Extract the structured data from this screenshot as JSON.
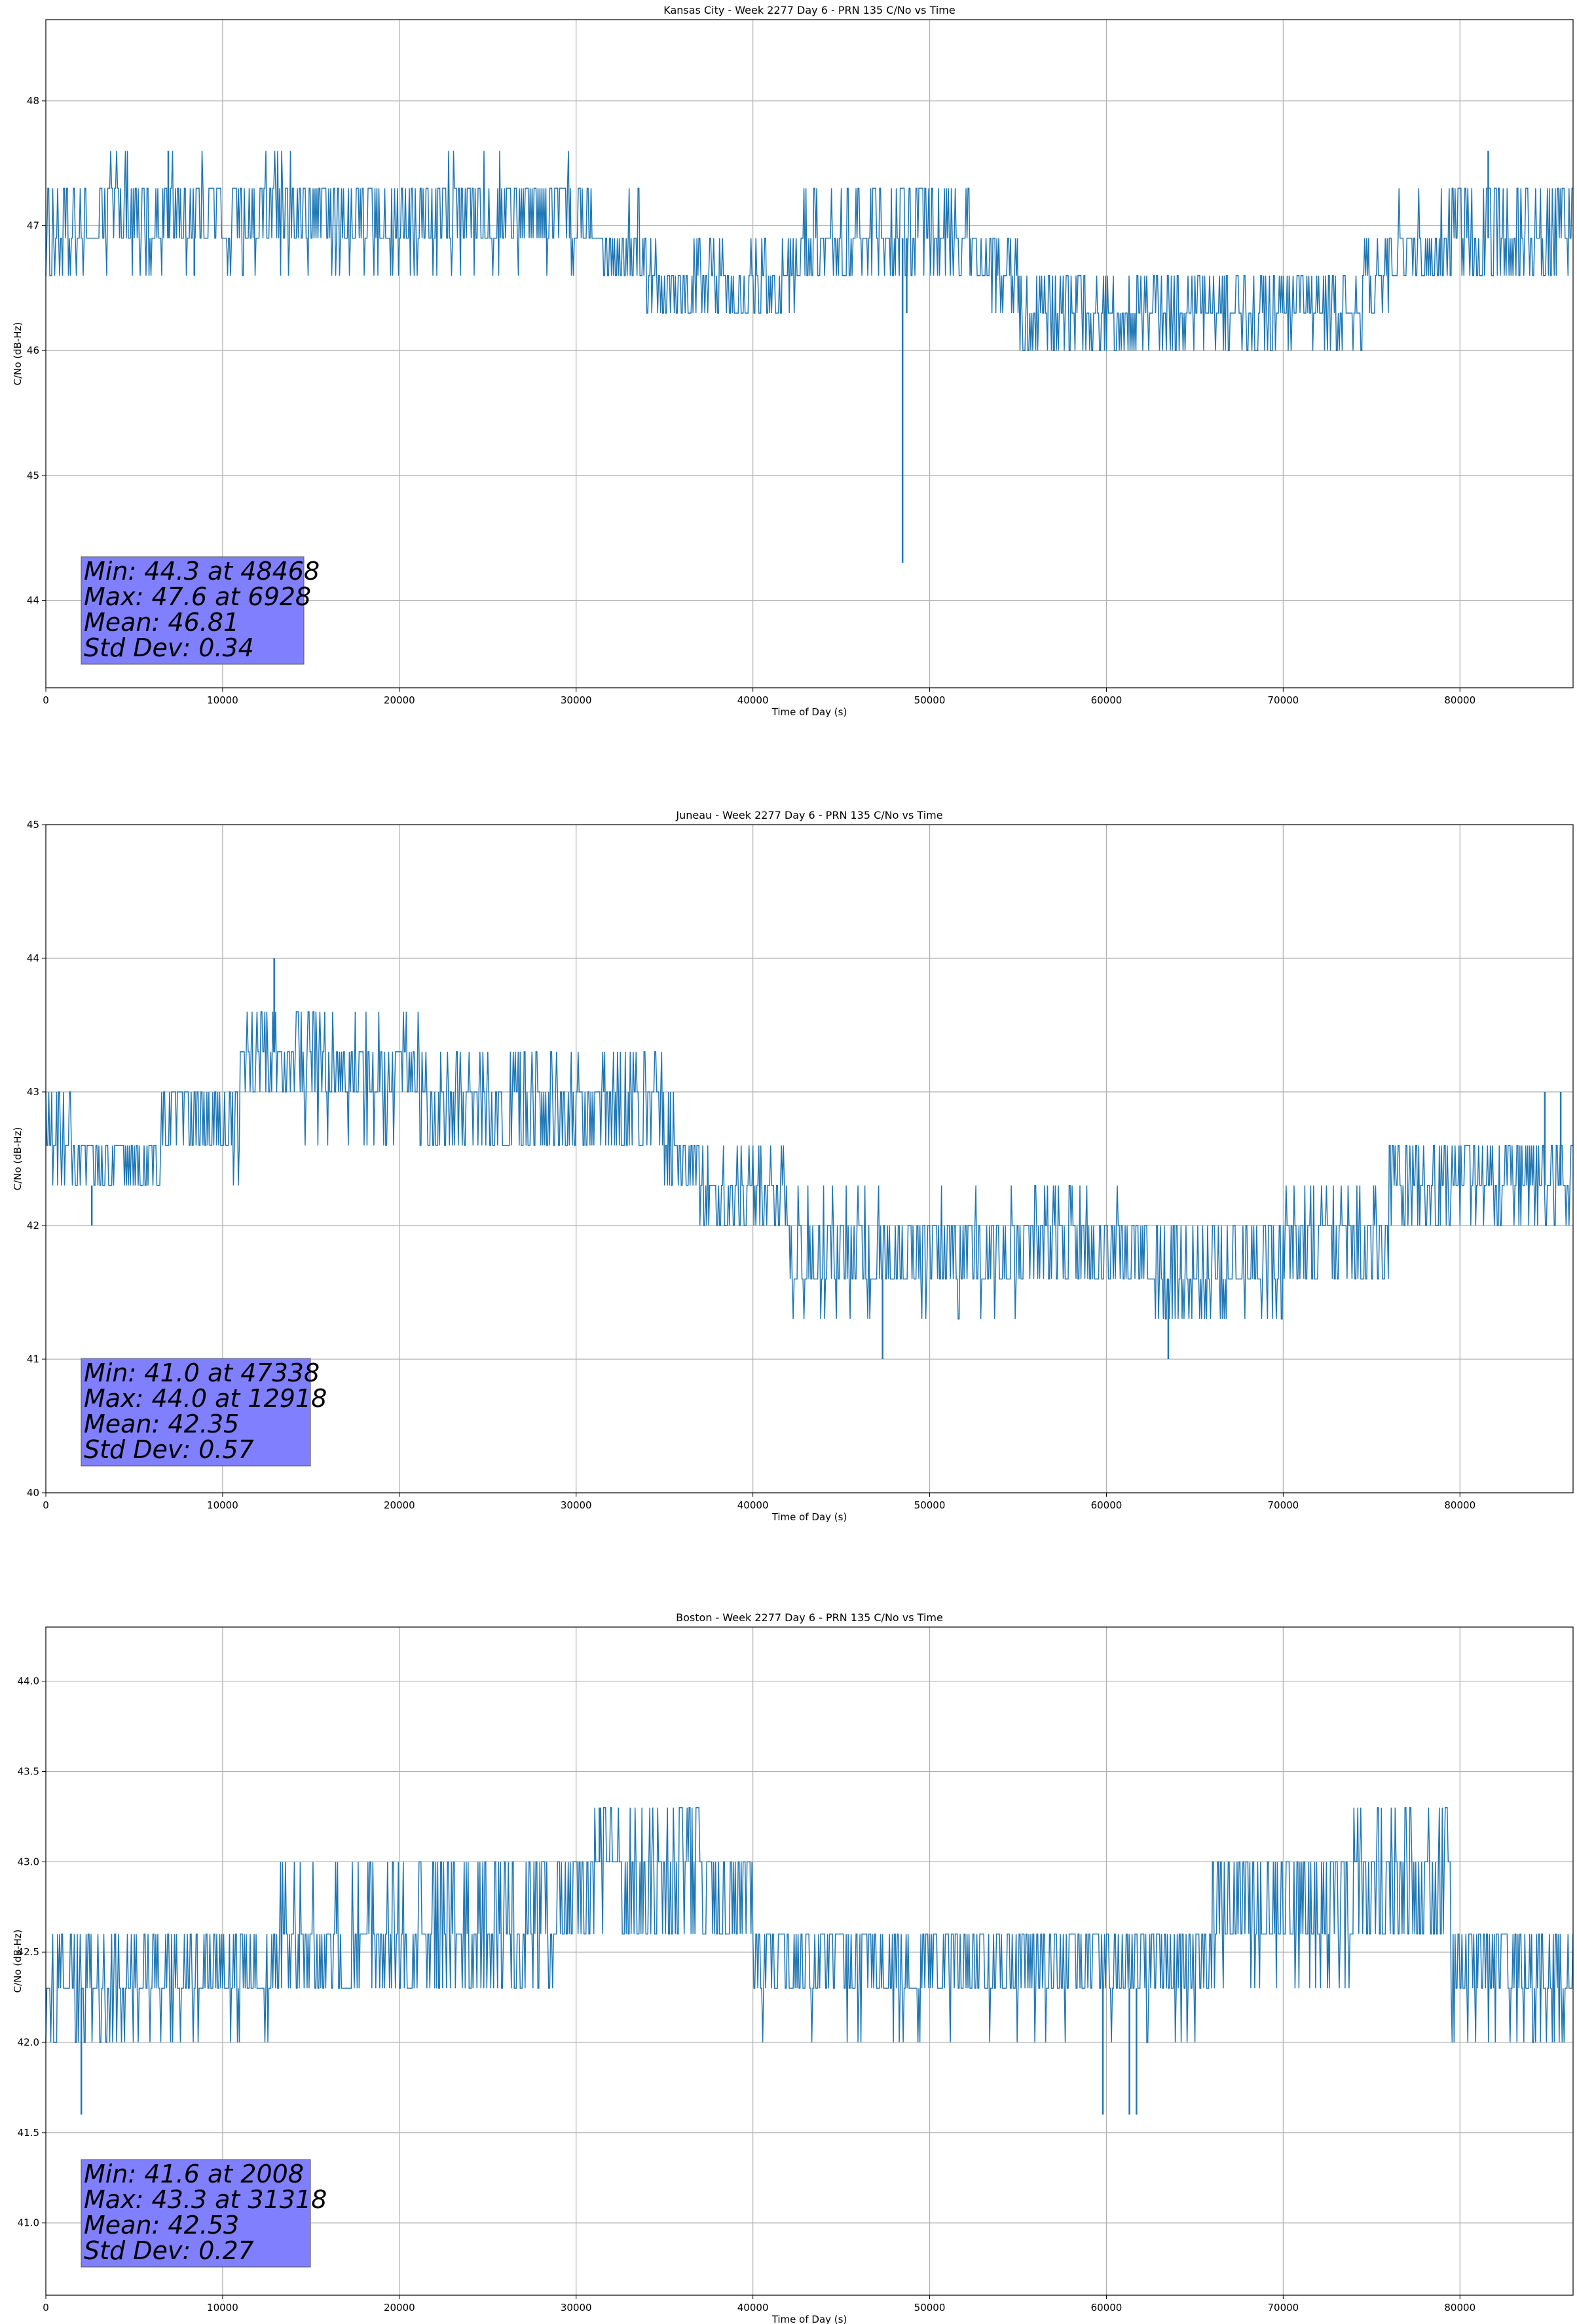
{
  "page": {
    "background": "#ffffff"
  },
  "style": {
    "line_color": "#1f77b4",
    "grid_color": "#b0b0b0",
    "stats_box_color": "#8080ff"
  },
  "chart_data": [
    {
      "type": "line",
      "title": "Kansas City - Week 2277 Day 6 - PRN 135 C/No vs Time",
      "xlabel": "Time of Day (s)",
      "ylabel": "C/No (dB-Hz)",
      "xlim": [
        0,
        86400
      ],
      "ylim": [
        43.3,
        48.65
      ],
      "grid": true,
      "xticks": [
        0,
        10000,
        20000,
        30000,
        40000,
        50000,
        60000,
        70000,
        80000
      ],
      "yticks": [
        44,
        45,
        46,
        47,
        48
      ],
      "ytick_labels": [
        "44",
        "45",
        "46",
        "47",
        "48"
      ],
      "stats": [
        "Min: 44.3 at 48468",
        "Max: 47.6 at 6928",
        "Mean: 46.81",
        "Std Dev: 0.34"
      ],
      "series": [
        {
          "quantum": 0.3,
          "segments": [
            {
              "x": [
                0,
                2200
              ],
              "levels": [
                46.6,
                46.9,
                47.3
              ],
              "probs": [
                0.3,
                0.45,
                0.25
              ]
            },
            {
              "x": [
                2200,
                3000
              ],
              "levels": [
                46.9,
                47.3
              ],
              "probs": [
                0.85,
                0.15
              ]
            },
            {
              "x": [
                3000,
                31500
              ],
              "levels": [
                46.9,
                47.3,
                46.6,
                47.6
              ],
              "probs": [
                0.45,
                0.45,
                0.07,
                0.03
              ]
            },
            {
              "x": [
                31500,
                34000
              ],
              "levels": [
                46.6,
                46.9,
                47.3
              ],
              "probs": [
                0.4,
                0.5,
                0.1
              ]
            },
            {
              "x": [
                34000,
                42500
              ],
              "levels": [
                46.3,
                46.6,
                46.9
              ],
              "probs": [
                0.3,
                0.5,
                0.2
              ]
            },
            {
              "x": [
                42500,
                47000
              ],
              "levels": [
                46.6,
                46.9,
                47.3
              ],
              "probs": [
                0.4,
                0.45,
                0.15
              ]
            },
            {
              "x": [
                47000,
                52300
              ],
              "levels": [
                46.6,
                46.9,
                47.3
              ],
              "probs": [
                0.3,
                0.45,
                0.25
              ]
            },
            {
              "x": [
                52300,
                55000
              ],
              "levels": [
                46.6,
                46.9,
                46.3
              ],
              "probs": [
                0.55,
                0.35,
                0.1
              ]
            },
            {
              "x": [
                55000,
                74500
              ],
              "levels": [
                46.0,
                46.3,
                46.6
              ],
              "probs": [
                0.25,
                0.45,
                0.3
              ]
            },
            {
              "x": [
                74500,
                76000
              ],
              "levels": [
                46.3,
                46.6,
                46.9
              ],
              "probs": [
                0.3,
                0.5,
                0.2
              ]
            },
            {
              "x": [
                76000,
                79500
              ],
              "levels": [
                46.6,
                46.9,
                47.3
              ],
              "probs": [
                0.4,
                0.5,
                0.1
              ]
            },
            {
              "x": [
                79500,
                86400
              ],
              "levels": [
                46.6,
                46.9,
                47.3
              ],
              "probs": [
                0.3,
                0.4,
                0.3
              ]
            }
          ],
          "spikes": [
            {
              "x": 48468,
              "y": 44.3
            },
            {
              "x": 6928,
              "y": 47.6
            },
            {
              "x": 48700,
              "y": 46.3
            },
            {
              "x": 8400,
              "y": 46.6
            },
            {
              "x": 81600,
              "y": 47.6
            }
          ]
        }
      ]
    },
    {
      "type": "line",
      "title": "Juneau - Week 2277 Day 6 - PRN 135 C/No vs Time",
      "xlabel": "Time of Day (s)",
      "ylabel": "C/No (dB-Hz)",
      "xlim": [
        0,
        86400
      ],
      "ylim": [
        40.0,
        45.0
      ],
      "grid": true,
      "xticks": [
        0,
        10000,
        20000,
        30000,
        40000,
        50000,
        60000,
        70000,
        80000
      ],
      "yticks": [
        40,
        41,
        42,
        43,
        44,
        45
      ],
      "ytick_labels": [
        "40",
        "41",
        "42",
        "43",
        "44",
        "45"
      ],
      "stats": [
        "Min: 41.0 at 47338",
        "Max: 44.0 at 12918",
        "Mean: 42.35",
        "Std Dev: 0.57"
      ],
      "series": [
        {
          "quantum": 0.3,
          "segments": [
            {
              "x": [
                0,
                1500
              ],
              "levels": [
                42.3,
                42.6,
                43.0
              ],
              "probs": [
                0.3,
                0.45,
                0.25
              ]
            },
            {
              "x": [
                1500,
                6500
              ],
              "levels": [
                42.3,
                42.6
              ],
              "probs": [
                0.55,
                0.45
              ]
            },
            {
              "x": [
                6500,
                11000
              ],
              "levels": [
                42.6,
                43.0,
                42.3
              ],
              "probs": [
                0.5,
                0.45,
                0.05
              ]
            },
            {
              "x": [
                11000,
                14500
              ],
              "levels": [
                43.0,
                43.3,
                43.6
              ],
              "probs": [
                0.35,
                0.45,
                0.2
              ]
            },
            {
              "x": [
                14500,
                21500
              ],
              "levels": [
                43.0,
                43.3,
                43.6,
                42.6
              ],
              "probs": [
                0.4,
                0.4,
                0.1,
                0.1
              ]
            },
            {
              "x": [
                21500,
                35000
              ],
              "levels": [
                42.6,
                43.0,
                43.3
              ],
              "probs": [
                0.4,
                0.45,
                0.15
              ]
            },
            {
              "x": [
                35000,
                37000
              ],
              "levels": [
                42.3,
                42.6,
                43.0
              ],
              "probs": [
                0.4,
                0.4,
                0.2
              ]
            },
            {
              "x": [
                37000,
                42000
              ],
              "levels": [
                42.0,
                42.3,
                42.6
              ],
              "probs": [
                0.4,
                0.45,
                0.15
              ]
            },
            {
              "x": [
                42000,
                55000
              ],
              "levels": [
                41.6,
                42.0,
                41.3,
                42.3
              ],
              "probs": [
                0.5,
                0.35,
                0.1,
                0.05
              ]
            },
            {
              "x": [
                55000,
                62500
              ],
              "levels": [
                41.6,
                42.0,
                42.3
              ],
              "probs": [
                0.45,
                0.45,
                0.1
              ]
            },
            {
              "x": [
                62500,
                70000
              ],
              "levels": [
                41.3,
                41.6,
                42.0
              ],
              "probs": [
                0.2,
                0.5,
                0.3
              ]
            },
            {
              "x": [
                70000,
                76000
              ],
              "levels": [
                41.6,
                42.0,
                42.3
              ],
              "probs": [
                0.3,
                0.5,
                0.2
              ]
            },
            {
              "x": [
                76000,
                86400
              ],
              "levels": [
                42.0,
                42.3,
                42.6
              ],
              "probs": [
                0.25,
                0.45,
                0.3
              ]
            }
          ],
          "spikes": [
            {
              "x": 47338,
              "y": 41.0
            },
            {
              "x": 12918,
              "y": 44.0
            },
            {
              "x": 63500,
              "y": 41.0
            },
            {
              "x": 84800,
              "y": 43.0
            },
            {
              "x": 85700,
              "y": 43.0
            },
            {
              "x": 2600,
              "y": 42.0
            }
          ]
        }
      ]
    },
    {
      "type": "line",
      "title": "Boston - Week 2277 Day 6 - PRN 135 C/No vs Time",
      "xlabel": "Time of Day (s)",
      "ylabel": "C/No (dB-Hz)",
      "xlim": [
        0,
        86400
      ],
      "ylim": [
        40.6,
        44.3
      ],
      "grid": true,
      "xticks": [
        0,
        10000,
        20000,
        30000,
        40000,
        50000,
        60000,
        70000,
        80000
      ],
      "yticks": [
        41.0,
        41.5,
        42.0,
        42.5,
        43.0,
        43.5,
        44.0
      ],
      "ytick_labels": [
        "41.0",
        "41.5",
        "42.0",
        "42.5",
        "43.0",
        "43.5",
        "44.0"
      ],
      "stats": [
        "Min: 41.6 at 2008",
        "Max: 43.3 at 31318",
        "Mean: 42.53",
        "Std Dev: 0.27"
      ],
      "series": [
        {
          "quantum": 0.3,
          "segments": [
            {
              "x": [
                0,
                4500
              ],
              "levels": [
                42.0,
                42.3,
                42.6
              ],
              "probs": [
                0.3,
                0.5,
                0.2
              ]
            },
            {
              "x": [
                4500,
                13000
              ],
              "levels": [
                42.3,
                42.6,
                42.0
              ],
              "probs": [
                0.5,
                0.4,
                0.1
              ]
            },
            {
              "x": [
                13000,
                18000
              ],
              "levels": [
                42.3,
                42.6,
                43.0
              ],
              "probs": [
                0.45,
                0.45,
                0.1
              ]
            },
            {
              "x": [
                18000,
                29000
              ],
              "levels": [
                42.3,
                42.6,
                43.0
              ],
              "probs": [
                0.35,
                0.4,
                0.25
              ]
            },
            {
              "x": [
                29000,
                31000
              ],
              "levels": [
                42.6,
                43.0
              ],
              "probs": [
                0.5,
                0.5
              ]
            },
            {
              "x": [
                31000,
                37000
              ],
              "levels": [
                42.6,
                43.0,
                43.3
              ],
              "probs": [
                0.35,
                0.4,
                0.25
              ]
            },
            {
              "x": [
                37000,
                40000
              ],
              "levels": [
                42.6,
                43.0
              ],
              "probs": [
                0.5,
                0.5
              ]
            },
            {
              "x": [
                40000,
                66000
              ],
              "levels": [
                42.3,
                42.6,
                42.0
              ],
              "probs": [
                0.5,
                0.45,
                0.05
              ]
            },
            {
              "x": [
                66000,
                74000
              ],
              "levels": [
                42.6,
                43.0,
                42.3
              ],
              "probs": [
                0.45,
                0.4,
                0.15
              ]
            },
            {
              "x": [
                74000,
                79500
              ],
              "levels": [
                42.6,
                43.0,
                43.3
              ],
              "probs": [
                0.4,
                0.4,
                0.2
              ]
            },
            {
              "x": [
                79500,
                86400
              ],
              "levels": [
                42.3,
                42.6,
                42.0
              ],
              "probs": [
                0.45,
                0.45,
                0.1
              ]
            }
          ],
          "spikes": [
            {
              "x": 2008,
              "y": 41.6
            },
            {
              "x": 31318,
              "y": 43.3
            },
            {
              "x": 59800,
              "y": 41.6
            },
            {
              "x": 61300,
              "y": 41.6
            },
            {
              "x": 61700,
              "y": 41.6
            }
          ]
        }
      ]
    }
  ]
}
